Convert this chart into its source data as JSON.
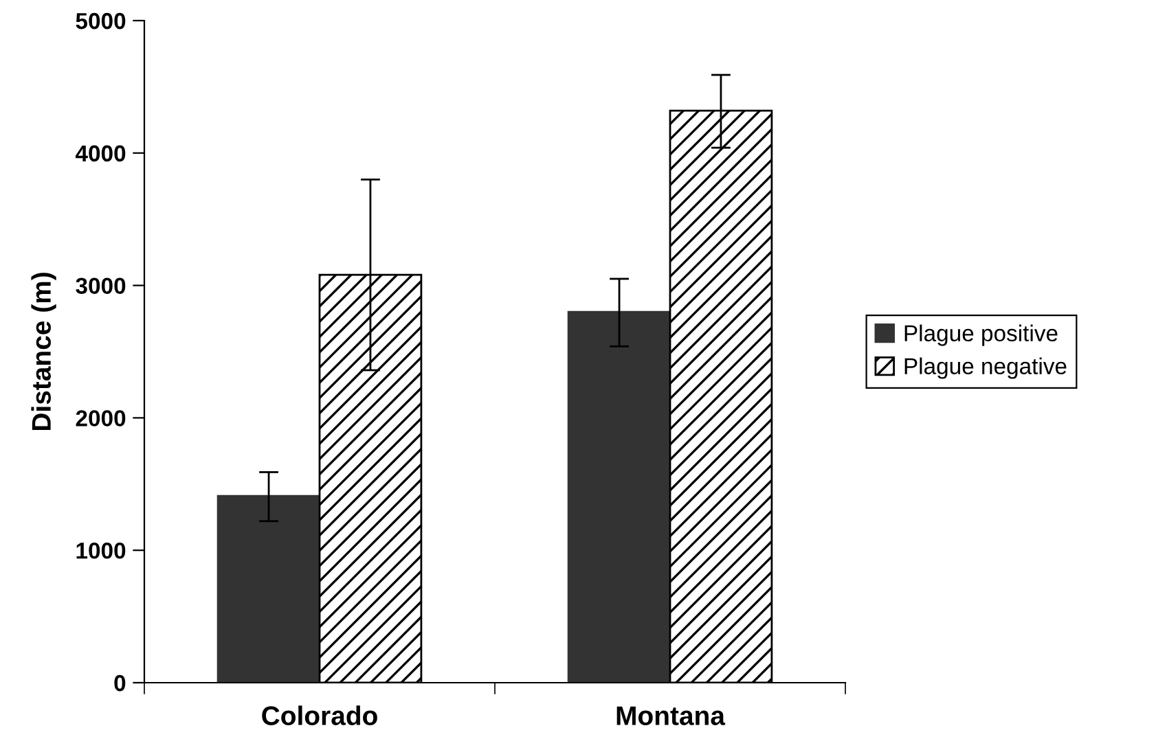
{
  "chart_data": {
    "type": "bar",
    "ylabel": "Distance (m)",
    "categories": [
      "Colorado",
      "Montana"
    ],
    "series": [
      {
        "name": "Plague positive",
        "color": "#333333",
        "values": [
          1410,
          2800
        ],
        "errors": [
          [
            1220,
            1590
          ],
          [
            2540,
            3050
          ]
        ]
      },
      {
        "name": "Plague negative",
        "color": "#000000",
        "values": [
          3080,
          4320
        ],
        "errors": [
          [
            2360,
            3800
          ],
          [
            4040,
            4590
          ]
        ]
      }
    ],
    "ylim": [
      0,
      5000
    ],
    "yticks": [
      0,
      1000,
      2000,
      3000,
      4000,
      5000
    ],
    "grid": false,
    "legend": "right"
  }
}
